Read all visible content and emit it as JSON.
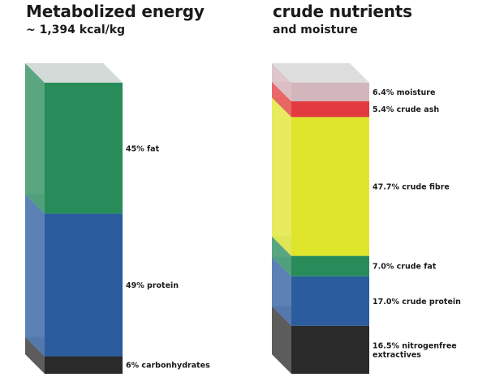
{
  "chart_data": [
    {
      "type": "bar",
      "stacked": true,
      "title": "Metabolized energy",
      "subtitle": "~ 1,394 kcal/kg",
      "unit": "%",
      "ylim": [
        0,
        100
      ],
      "segments": [
        {
          "label": "6% carbonhydrates",
          "value": 6,
          "color": "#2a2a2a"
        },
        {
          "label": "49% protein",
          "value": 49,
          "color": "#2a5c9e"
        },
        {
          "label": "45% fat",
          "value": 45,
          "color": "#278b5a"
        }
      ]
    },
    {
      "type": "bar",
      "stacked": true,
      "title": "crude nutrients",
      "subtitle": "and moisture",
      "unit": "%",
      "ylim": [
        0,
        100
      ],
      "segments": [
        {
          "label": "16.5% nitrogenfree extractives",
          "lines": [
            "16.5% nitrogenfree",
            "extractives"
          ],
          "value": 16.5,
          "color": "#2a2a2a"
        },
        {
          "label": "17.0% crude protein",
          "value": 17.0,
          "color": "#2a5c9e"
        },
        {
          "label": "7.0% crude fat",
          "value": 7.0,
          "color": "#278b5a"
        },
        {
          "label": "47.7% crude fibre",
          "value": 47.7,
          "color": "#dfe52b"
        },
        {
          "label": "5.4% crude ash",
          "value": 5.4,
          "color": "#e23a3e"
        },
        {
          "label": "6.4% moisture",
          "value": 6.4,
          "color": "#d2b6bb"
        }
      ]
    }
  ]
}
